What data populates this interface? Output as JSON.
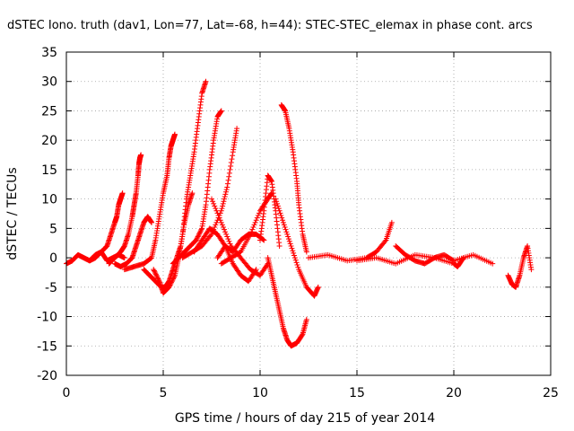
{
  "chart_data": {
    "type": "scatter",
    "title": "dSTEC Iono. truth (dav1, Lon=77, Lat=-68, h=44): STEC-STEC_elemax in phase cont. arcs",
    "xlabel": "GPS time / hours of day 215 of year 2014",
    "ylabel": "dSTEC  / TECUs",
    "xlim": [
      0,
      25
    ],
    "ylim": [
      -20,
      35
    ],
    "xticks": [
      "0",
      "5",
      "10",
      "15",
      "20",
      "25"
    ],
    "yticks": [
      "-20",
      "-15",
      "-10",
      "-5",
      "0",
      "5",
      "10",
      "15",
      "20",
      "25",
      "30",
      "35"
    ],
    "grid": true,
    "legend": "none",
    "marker": "plus",
    "color": "#ff0000",
    "series": [
      {
        "x": [
          0.0,
          0.3,
          0.6,
          0.9,
          1.2,
          1.5,
          1.8,
          2.1,
          2.4,
          2.7,
          3.0
        ],
        "y": [
          -1,
          -0.5,
          0.5,
          0,
          -0.5,
          0.5,
          1,
          -0.5,
          0,
          0.5,
          0
        ]
      },
      {
        "x": [
          1.2,
          1.5,
          1.8,
          2.1,
          2.3,
          2.5,
          2.6,
          2.7,
          2.8,
          2.9
        ],
        "y": [
          -0.5,
          0,
          1,
          2,
          4,
          6,
          7,
          9,
          10,
          11
        ]
      },
      {
        "x": [
          2.2,
          2.5,
          2.8,
          3.0,
          3.2,
          3.4,
          3.5,
          3.6,
          3.7,
          3.75,
          3.8,
          3.85
        ],
        "y": [
          -1,
          0,
          1,
          2,
          4,
          7,
          9,
          11,
          14,
          16,
          17,
          17.5
        ]
      },
      {
        "x": [
          2.5,
          2.8,
          3.1,
          3.4,
          3.6,
          3.8,
          4.0,
          4.2,
          4.4
        ],
        "y": [
          -1,
          -1.5,
          -1,
          0,
          2,
          4,
          6,
          7,
          6
        ]
      },
      {
        "x": [
          3.0,
          3.5,
          4.0,
          4.4,
          4.6,
          4.8,
          5.0,
          5.2,
          5.3,
          5.4,
          5.5,
          5.6
        ],
        "y": [
          -2,
          -1.5,
          -1,
          0,
          3,
          7,
          11,
          14,
          17,
          19,
          20,
          21
        ]
      },
      {
        "x": [
          4.0,
          4.3,
          4.6,
          4.9,
          5.1,
          5.3,
          5.5,
          5.7,
          5.9,
          6.1,
          6.3,
          6.5
        ],
        "y": [
          -2,
          -3,
          -4,
          -5,
          -5,
          -4,
          -2,
          0,
          2,
          6,
          9,
          11
        ]
      },
      {
        "x": [
          4.5,
          4.8,
          5.0,
          5.3,
          5.6,
          5.8,
          6.0,
          6.2,
          6.4,
          6.6,
          6.8,
          7.0,
          7.2
        ],
        "y": [
          -2,
          -4,
          -6,
          -5,
          -3,
          0,
          4,
          10,
          14,
          18,
          23,
          28,
          30
        ]
      },
      {
        "x": [
          5.5,
          5.8,
          6.1,
          6.4,
          6.7,
          7.0,
          7.2,
          7.4,
          7.6,
          7.8,
          8.0
        ],
        "y": [
          -1,
          0,
          1,
          2,
          3,
          5,
          9,
          15,
          20,
          24,
          25
        ]
      },
      {
        "x": [
          6.0,
          6.5,
          7.0,
          7.5,
          8.0,
          8.3,
          8.6,
          8.8
        ],
        "y": [
          0,
          1,
          2,
          4,
          8,
          12,
          18,
          22
        ]
      },
      {
        "x": [
          6.6,
          7.0,
          7.4,
          7.8,
          8.2,
          8.6,
          9.0,
          9.4,
          9.8
        ],
        "y": [
          1,
          3,
          5,
          4,
          2,
          -1,
          -3,
          -4,
          -2
        ]
      },
      {
        "x": [
          7.5,
          8.0,
          8.5,
          9.0,
          9.5,
          10.0,
          10.4
        ],
        "y": [
          10,
          6,
          2,
          0,
          -2,
          -3,
          -1
        ]
      },
      {
        "x": [
          7.8,
          8.2,
          8.6,
          9.0,
          9.4,
          9.8,
          10.2
        ],
        "y": [
          0,
          2,
          1,
          3,
          4,
          4,
          3
        ]
      },
      {
        "x": [
          8.0,
          8.5,
          9.0,
          9.5,
          10.0,
          10.4,
          10.6
        ],
        "y": [
          -1,
          0,
          1,
          4,
          8,
          10,
          11
        ]
      },
      {
        "x": [
          10.0,
          10.2,
          10.4,
          10.6,
          10.8,
          11.0
        ],
        "y": [
          3,
          8,
          14,
          13,
          8,
          2
        ]
      },
      {
        "x": [
          10.4,
          10.6,
          10.8,
          11.0,
          11.2,
          11.4,
          11.6,
          11.9,
          12.2,
          12.4
        ],
        "y": [
          0,
          -3,
          -6,
          -9,
          -12,
          -14,
          -15,
          -14.5,
          -13,
          -10.5
        ]
      },
      {
        "x": [
          11.1,
          11.3,
          11.5,
          11.7,
          11.9,
          12.0,
          12.2,
          12.4
        ],
        "y": [
          26,
          25,
          22,
          18,
          13,
          9,
          4,
          1
        ]
      },
      {
        "x": [
          10.8,
          11.2,
          11.6,
          12.0,
          12.4,
          12.8,
          13.0
        ],
        "y": [
          10,
          6,
          2,
          -2,
          -5,
          -6.5,
          -5
        ]
      },
      {
        "x": [
          12.5,
          13.5,
          14.5,
          15.5,
          16.0,
          16.5,
          16.8
        ],
        "y": [
          0,
          0.5,
          -0.5,
          0,
          1,
          3,
          6
        ]
      },
      {
        "x": [
          15.0,
          16.0,
          17.0,
          18.0,
          19.0,
          20.0,
          20.2,
          20.5
        ],
        "y": [
          -0.5,
          0,
          -1,
          0.5,
          0,
          -1,
          -1.5,
          0
        ]
      },
      {
        "x": [
          17.0,
          17.5,
          18.0,
          18.5,
          19.0,
          19.5,
          20.0,
          21.0,
          22.0
        ],
        "y": [
          2,
          0.5,
          -0.5,
          -1,
          0,
          0.5,
          -0.5,
          0.5,
          -1
        ]
      },
      {
        "x": [
          22.8,
          23.0,
          23.2,
          23.4,
          23.6,
          23.8,
          24.0
        ],
        "y": [
          -3,
          -4.5,
          -5,
          -3,
          0,
          2,
          -2
        ]
      }
    ]
  }
}
